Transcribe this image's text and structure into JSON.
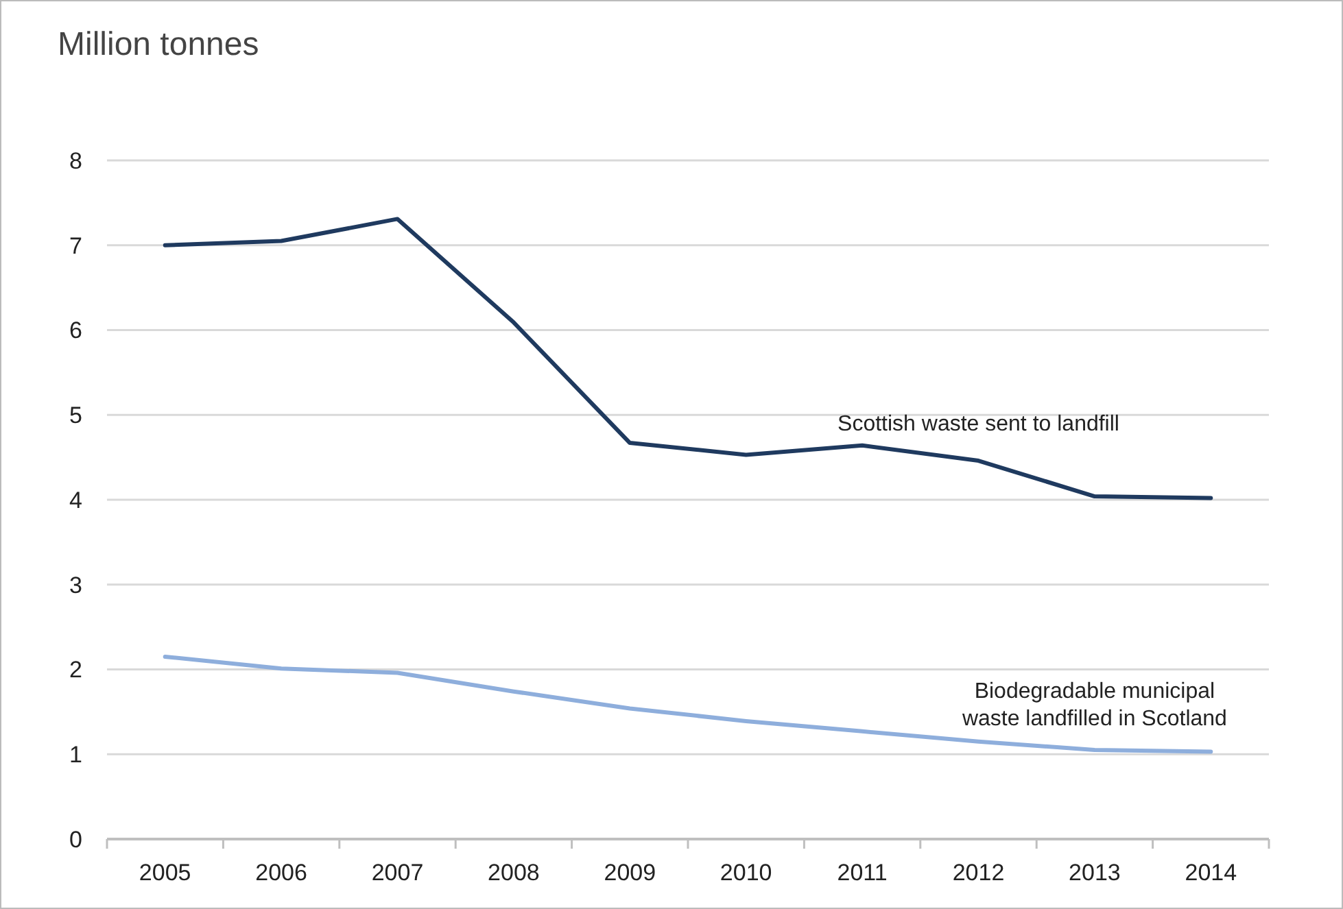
{
  "chart_data": {
    "type": "line",
    "title": "Million tonnes",
    "categories": [
      "2005",
      "2006",
      "2007",
      "2008",
      "2009",
      "2010",
      "2011",
      "2012",
      "2013",
      "2014"
    ],
    "series": [
      {
        "name": "Scottish waste sent to landfill",
        "color": "#1f3a5f",
        "values": [
          7.0,
          7.05,
          7.31,
          6.09,
          4.67,
          4.53,
          4.64,
          4.46,
          4.04,
          4.02
        ]
      },
      {
        "name": "Biodegradable municipal waste landfilled in Scotland",
        "color": "#8eaedc",
        "values": [
          2.15,
          2.01,
          1.96,
          1.74,
          1.54,
          1.39,
          1.27,
          1.15,
          1.05,
          1.03
        ]
      }
    ],
    "ylim": [
      0,
      8
    ],
    "yticks": [
      0,
      1,
      2,
      3,
      4,
      5,
      6,
      7,
      8
    ],
    "grid": "y",
    "marker": "none",
    "line_style": "solid"
  }
}
